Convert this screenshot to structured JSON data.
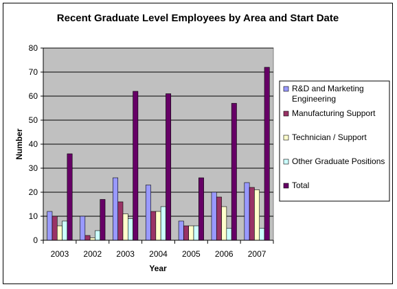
{
  "chart_data": {
    "type": "bar",
    "title": "Recent Graduate Level Employees by Area and Start Date",
    "xlabel": "Year",
    "ylabel": "Number",
    "ylim": [
      0,
      80
    ],
    "yticks": [
      0,
      10,
      20,
      30,
      40,
      50,
      60,
      70,
      80
    ],
    "grid": true,
    "legend_position": "right",
    "plot_background": "#c0c0c0",
    "categories": [
      "2003",
      "2002",
      "2003",
      "2004",
      "2005",
      "2006",
      "2007"
    ],
    "series": [
      {
        "name": "R&D and Marketing Engineering",
        "color": "#9999ff",
        "values": [
          12,
          10,
          26,
          23,
          8,
          20,
          24
        ]
      },
      {
        "name": "Manufacturing Support",
        "color": "#993366",
        "values": [
          10,
          2,
          16,
          12,
          6,
          18,
          22
        ]
      },
      {
        "name": "Technician / Support",
        "color": "#ffffcc",
        "values": [
          6,
          1,
          11,
          12,
          6,
          14,
          21
        ]
      },
      {
        "name": "Other Graduate Positions",
        "color": "#ccffff",
        "values": [
          8,
          4,
          9,
          14,
          6,
          5,
          5
        ]
      },
      {
        "name": "Total",
        "color": "#660066",
        "values": [
          36,
          17,
          62,
          61,
          26,
          57,
          72
        ]
      }
    ]
  }
}
